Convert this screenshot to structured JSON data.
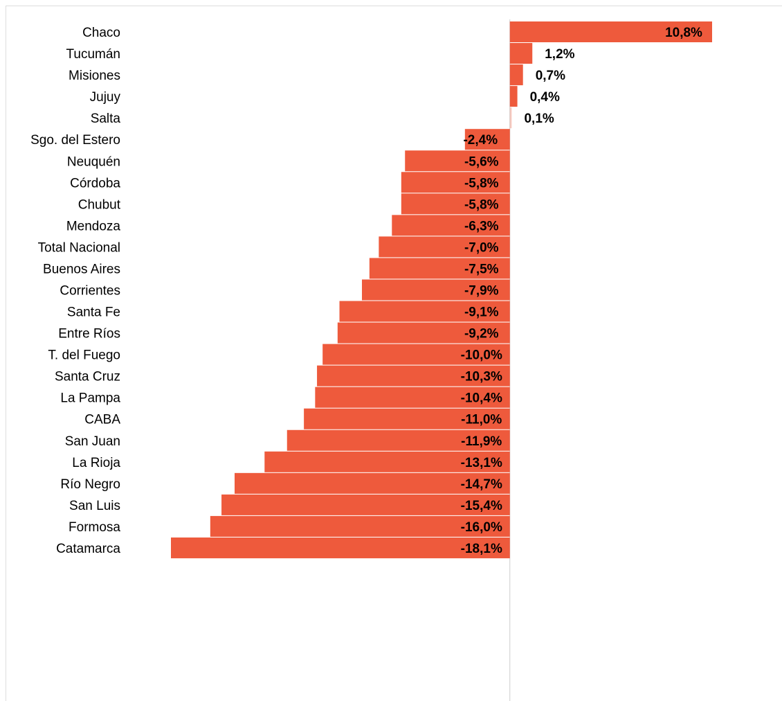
{
  "chart_data": {
    "type": "bar",
    "orientation": "horizontal",
    "color": "#ee5a3c",
    "categories": [
      "Chaco",
      "Tucumán",
      "Misiones",
      "Jujuy",
      "Salta",
      "Sgo. del Estero",
      "Neuquén",
      "Córdoba",
      "Chubut",
      "Mendoza",
      "Total Nacional",
      "Buenos Aires",
      "Corrientes",
      "Santa Fe",
      "Entre Ríos",
      "T. del Fuego",
      "Santa Cruz",
      "La Pampa",
      "CABA",
      "San Juan",
      "La Rioja",
      "Río Negro",
      "San Luis",
      "Formosa",
      "Catamarca"
    ],
    "values": [
      10.8,
      1.2,
      0.7,
      0.4,
      0.1,
      -2.4,
      -5.6,
      -5.8,
      -5.8,
      -6.3,
      -7.0,
      -7.5,
      -7.9,
      -9.1,
      -9.2,
      -10.0,
      -10.3,
      -10.4,
      -11.0,
      -11.9,
      -13.1,
      -14.7,
      -15.4,
      -16.0,
      -18.1
    ],
    "value_labels": [
      "10,8%",
      "1,2%",
      "0,7%",
      "0,4%",
      "0,1%",
      "-2,4%",
      "-5,6%",
      "-5,8%",
      "-5,8%",
      "-6,3%",
      "-7,0%",
      "-7,5%",
      "-7,9%",
      "-9,1%",
      "-9,2%",
      "-10,0%",
      "-10,3%",
      "-10,4%",
      "-11,0%",
      "-11,9%",
      "-13,1%",
      "-14,7%",
      "-15,4%",
      "-16,0%",
      "-18,1%"
    ],
    "xlim": [
      -18.1,
      10.8
    ]
  }
}
